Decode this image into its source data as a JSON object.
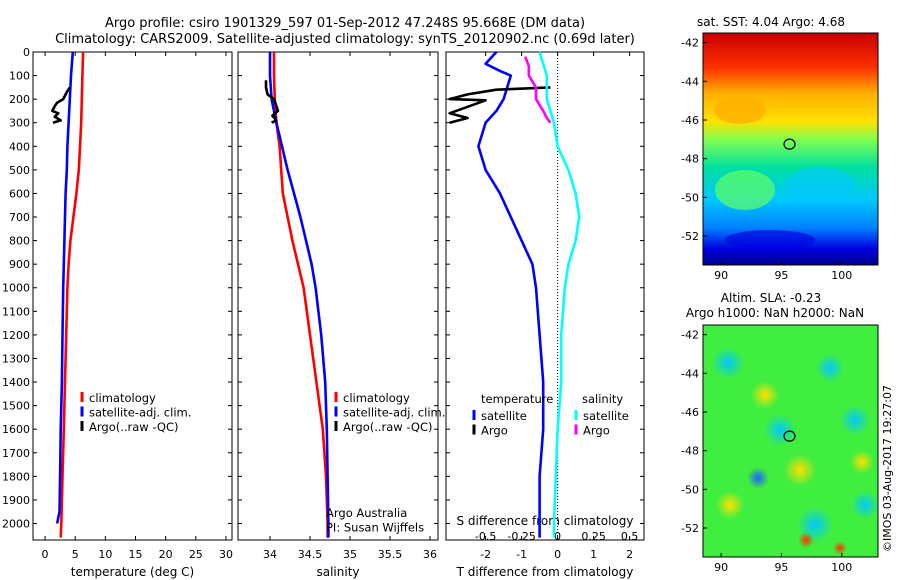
{
  "header": {
    "title_line1": "Argo profile: csiro 1901329_597 01-Sep-2012 47.248S 95.668E (DM data)",
    "title_line2": "Climatology: CARS2009. Satellite-adjusted climatology: synTS_20120902.nc (0.69d later)"
  },
  "colors": {
    "climatology": "#ff0000",
    "satellite": "#0000ff",
    "argo": "#000000",
    "sat_salinity": "#00ffff",
    "argo_salinity": "#ff00ff"
  },
  "chart_data": [
    {
      "type": "line",
      "panel": "temperature",
      "xlabel": "temperature (deg C)",
      "ylabel": "",
      "xlim": [
        -2,
        31
      ],
      "ylim": [
        2070,
        0
      ],
      "xticks": [
        "0",
        "5",
        "10",
        "15",
        "20",
        "25",
        "30"
      ],
      "yticks": [
        "0",
        "100",
        "200",
        "300",
        "400",
        "500",
        "600",
        "700",
        "800",
        "900",
        "1000",
        "1100",
        "1200",
        "1300",
        "1400",
        "1500",
        "1600",
        "1700",
        "1800",
        "1900",
        "2000"
      ],
      "legend": [
        "climatology",
        "satellite-adj. clim.",
        "Argo(..raw -QC)"
      ],
      "series": [
        {
          "name": "climatology",
          "color": "#ff0000",
          "points": [
            [
              6.3,
              0
            ],
            [
              6.2,
              100
            ],
            [
              6.1,
              200
            ],
            [
              6.0,
              300
            ],
            [
              5.8,
              400
            ],
            [
              5.6,
              500
            ],
            [
              5.2,
              600
            ],
            [
              4.7,
              700
            ],
            [
              4.2,
              800
            ],
            [
              3.9,
              900
            ],
            [
              3.7,
              1000
            ],
            [
              3.5,
              1200
            ],
            [
              3.3,
              1400
            ],
            [
              3.1,
              1600
            ],
            [
              2.9,
              1800
            ],
            [
              2.7,
              2000
            ],
            [
              2.6,
              2060
            ]
          ]
        },
        {
          "name": "satellite-adj. clim.",
          "color": "#0000ff",
          "points": [
            [
              4.6,
              0
            ],
            [
              4.3,
              100
            ],
            [
              4.1,
              200
            ],
            [
              3.9,
              300
            ],
            [
              3.7,
              400
            ],
            [
              3.6,
              500
            ],
            [
              3.4,
              600
            ],
            [
              3.3,
              700
            ],
            [
              3.2,
              800
            ],
            [
              3.1,
              900
            ],
            [
              3.0,
              1000
            ],
            [
              2.9,
              1200
            ],
            [
              2.8,
              1400
            ],
            [
              2.6,
              1600
            ],
            [
              2.5,
              1800
            ],
            [
              2.4,
              1950
            ],
            [
              2.0,
              2000
            ]
          ]
        },
        {
          "name": "Argo(..raw -QC)",
          "color": "#000000",
          "points": [
            [
              4.1,
              150
            ],
            [
              3.6,
              170
            ],
            [
              3.0,
              200
            ],
            [
              2.0,
              215
            ],
            [
              1.6,
              230
            ],
            [
              1.2,
              250
            ],
            [
              2.2,
              260
            ],
            [
              1.6,
              275
            ],
            [
              2.6,
              290
            ],
            [
              1.3,
              300
            ]
          ]
        }
      ],
      "annotations": []
    },
    {
      "type": "line",
      "panel": "salinity",
      "xlabel": "salinity",
      "ylabel": "",
      "xlim": [
        33.6,
        36.1
      ],
      "ylim": [
        2070,
        0
      ],
      "xticks": [
        "34",
        "34.5",
        "35",
        "35.5",
        "36"
      ],
      "legend": [
        "climatology",
        "satellite-adj. clim.",
        "Argo(..raw -QC)"
      ],
      "series": [
        {
          "name": "climatology",
          "color": "#ff0000",
          "points": [
            [
              34.05,
              0
            ],
            [
              34.05,
              100
            ],
            [
              34.06,
              200
            ],
            [
              34.08,
              300
            ],
            [
              34.12,
              400
            ],
            [
              34.14,
              500
            ],
            [
              34.16,
              600
            ],
            [
              34.22,
              700
            ],
            [
              34.28,
              800
            ],
            [
              34.35,
              900
            ],
            [
              34.42,
              1000
            ],
            [
              34.5,
              1200
            ],
            [
              34.58,
              1400
            ],
            [
              34.66,
              1600
            ],
            [
              34.7,
              1800
            ],
            [
              34.72,
              2000
            ],
            [
              34.72,
              2060
            ]
          ]
        },
        {
          "name": "satellite-adj. clim.",
          "color": "#0000ff",
          "points": [
            [
              34.0,
              0
            ],
            [
              34.0,
              100
            ],
            [
              34.02,
              200
            ],
            [
              34.08,
              300
            ],
            [
              34.15,
              400
            ],
            [
              34.22,
              500
            ],
            [
              34.3,
              600
            ],
            [
              34.38,
              700
            ],
            [
              34.45,
              800
            ],
            [
              34.52,
              900
            ],
            [
              34.57,
              1000
            ],
            [
              34.64,
              1200
            ],
            [
              34.69,
              1400
            ],
            [
              34.71,
              1600
            ],
            [
              34.72,
              1800
            ],
            [
              34.73,
              2000
            ],
            [
              34.73,
              2060
            ]
          ]
        },
        {
          "name": "Argo(..raw -QC)",
          "color": "#000000",
          "points": [
            [
              33.95,
              120
            ],
            [
              33.95,
              150
            ],
            [
              33.97,
              180
            ],
            [
              34.05,
              200
            ],
            [
              34.08,
              230
            ],
            [
              34.1,
              250
            ],
            [
              34.03,
              270
            ],
            [
              34.08,
              290
            ],
            [
              34.02,
              300
            ]
          ]
        }
      ],
      "annotations": [
        "Argo Australia",
        "PI: Susan Wijffels"
      ]
    },
    {
      "type": "line",
      "panel": "difference",
      "xlabel": "T difference from climatology",
      "xlabel_top": "S difference from climatology",
      "xlim": [
        -3.1,
        2.4
      ],
      "ylim": [
        2070,
        0
      ],
      "xticks": [
        "-2",
        "-1",
        "0",
        "1",
        "2"
      ],
      "xticks_s": [
        "-0.5",
        "-0.25",
        "0",
        "0.25",
        "0.5"
      ],
      "legend_temperature": {
        "title": "temperature",
        "items": [
          "satellite",
          "Argo"
        ]
      },
      "legend_salinity": {
        "title": "salinity",
        "items": [
          "satellite",
          "Argo"
        ]
      },
      "series": [
        {
          "name": "temperature satellite",
          "color": "#0000ff",
          "points": [
            [
              -1.7,
              0
            ],
            [
              -2.0,
              50
            ],
            [
              -1.6,
              80
            ],
            [
              -1.3,
              100
            ],
            [
              -1.4,
              150
            ],
            [
              -1.5,
              200
            ],
            [
              -1.7,
              250
            ],
            [
              -2.0,
              300
            ],
            [
              -2.2,
              400
            ],
            [
              -2.0,
              500
            ],
            [
              -1.6,
              600
            ],
            [
              -1.3,
              700
            ],
            [
              -1.0,
              800
            ],
            [
              -0.7,
              900
            ],
            [
              -0.6,
              1000
            ],
            [
              -0.5,
              1200
            ],
            [
              -0.4,
              1400
            ],
            [
              -0.4,
              1600
            ],
            [
              -0.5,
              1800
            ],
            [
              -0.5,
              2000
            ],
            [
              -0.5,
              2060
            ]
          ]
        },
        {
          "name": "temperature Argo",
          "color": "#000000",
          "points": [
            [
              -0.2,
              150
            ],
            [
              -1.7,
              160
            ],
            [
              -2.5,
              180
            ],
            [
              -3.0,
              200
            ],
            [
              -2.0,
              205
            ],
            [
              -3.0,
              260
            ],
            [
              -2.5,
              280
            ],
            [
              -3.0,
              300
            ]
          ]
        },
        {
          "name": "salinity satellite",
          "color": "#00ffff",
          "points": [
            [
              -0.5,
              0
            ],
            [
              -0.4,
              50
            ],
            [
              -0.3,
              100
            ],
            [
              -0.3,
              200
            ],
            [
              -0.1,
              300
            ],
            [
              0.0,
              400
            ],
            [
              0.3,
              500
            ],
            [
              0.5,
              600
            ],
            [
              0.6,
              700
            ],
            [
              0.5,
              800
            ],
            [
              0.3,
              900
            ],
            [
              0.2,
              1000
            ],
            [
              0.1,
              1200
            ],
            [
              0.1,
              1400
            ],
            [
              0.0,
              1600
            ],
            [
              -0.05,
              1800
            ],
            [
              -0.1,
              2000
            ],
            [
              -0.1,
              2060
            ]
          ]
        },
        {
          "name": "salinity Argo",
          "color": "#ff00ff",
          "points": [
            [
              -0.9,
              20
            ],
            [
              -0.8,
              60
            ],
            [
              -0.8,
              100
            ],
            [
              -0.6,
              150
            ],
            [
              -0.6,
              200
            ],
            [
              -0.4,
              250
            ],
            [
              -0.3,
              280
            ],
            [
              -0.2,
              300
            ]
          ]
        }
      ],
      "annotations": []
    },
    {
      "type": "heatmap",
      "panel": "sst_map",
      "title": "sat. SST: 4.04 Argo: 4.68",
      "xlim": [
        88.5,
        103
      ],
      "ylim": [
        -53.5,
        -41.5
      ],
      "xticks": [
        "90",
        "95",
        "100"
      ],
      "yticks": [
        "-42",
        "-44",
        "-46",
        "-48",
        "-50",
        "-52"
      ],
      "argo_position": [
        95.668,
        -47.248
      ]
    },
    {
      "type": "heatmap",
      "panel": "sla_map",
      "title": "Altim. SLA: -0.23",
      "subtitle": "Argo h1000: NaN h2000: NaN",
      "xlim": [
        88.5,
        103
      ],
      "ylim": [
        -53.5,
        -41.5
      ],
      "xticks": [
        "90",
        "95",
        "100"
      ],
      "yticks": [
        "-42",
        "-44",
        "-46",
        "-48",
        "-50",
        "-52"
      ],
      "argo_position": [
        95.668,
        -47.248
      ]
    }
  ],
  "footer": {
    "stamp": "©IMOS 03-Aug-2017 19:27:07"
  }
}
